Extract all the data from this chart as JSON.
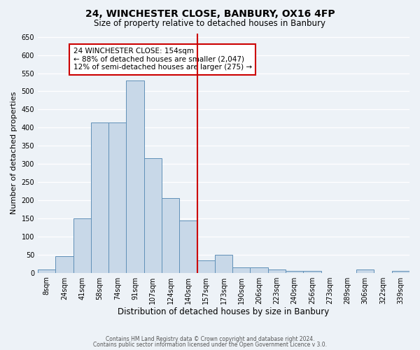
{
  "title1": "24, WINCHESTER CLOSE, BANBURY, OX16 4FP",
  "title2": "Size of property relative to detached houses in Banbury",
  "xlabel": "Distribution of detached houses by size in Banbury",
  "ylabel": "Number of detached properties",
  "bin_labels": [
    "8sqm",
    "24sqm",
    "41sqm",
    "58sqm",
    "74sqm",
    "91sqm",
    "107sqm",
    "124sqm",
    "140sqm",
    "157sqm",
    "173sqm",
    "190sqm",
    "206sqm",
    "223sqm",
    "240sqm",
    "256sqm",
    "273sqm",
    "289sqm",
    "306sqm",
    "322sqm",
    "339sqm"
  ],
  "bar_values": [
    10,
    45,
    150,
    415,
    415,
    530,
    315,
    205,
    145,
    35,
    50,
    15,
    15,
    10,
    5,
    5,
    0,
    0,
    10,
    0,
    5
  ],
  "bar_color": "#c8d8e8",
  "bar_edgecolor": "#6090b8",
  "vline_index": 9,
  "vline_color": "#cc0000",
  "annotation_title": "24 WINCHESTER CLOSE: 154sqm",
  "annotation_line1": "← 88% of detached houses are smaller (2,047)",
  "annotation_line2": "12% of semi-detached houses are larger (275) →",
  "annotation_box_edgecolor": "#cc0000",
  "ylim": [
    0,
    660
  ],
  "yticks": [
    0,
    50,
    100,
    150,
    200,
    250,
    300,
    350,
    400,
    450,
    500,
    550,
    600,
    650
  ],
  "footer1": "Contains HM Land Registry data © Crown copyright and database right 2024.",
  "footer2": "Contains public sector information licensed under the Open Government Licence v 3.0.",
  "bg_color": "#edf2f7",
  "title1_fontsize": 10,
  "title2_fontsize": 8.5,
  "ylabel_fontsize": 8,
  "xlabel_fontsize": 8.5,
  "tick_labelsize": 7,
  "ann_fontsize": 7.5
}
